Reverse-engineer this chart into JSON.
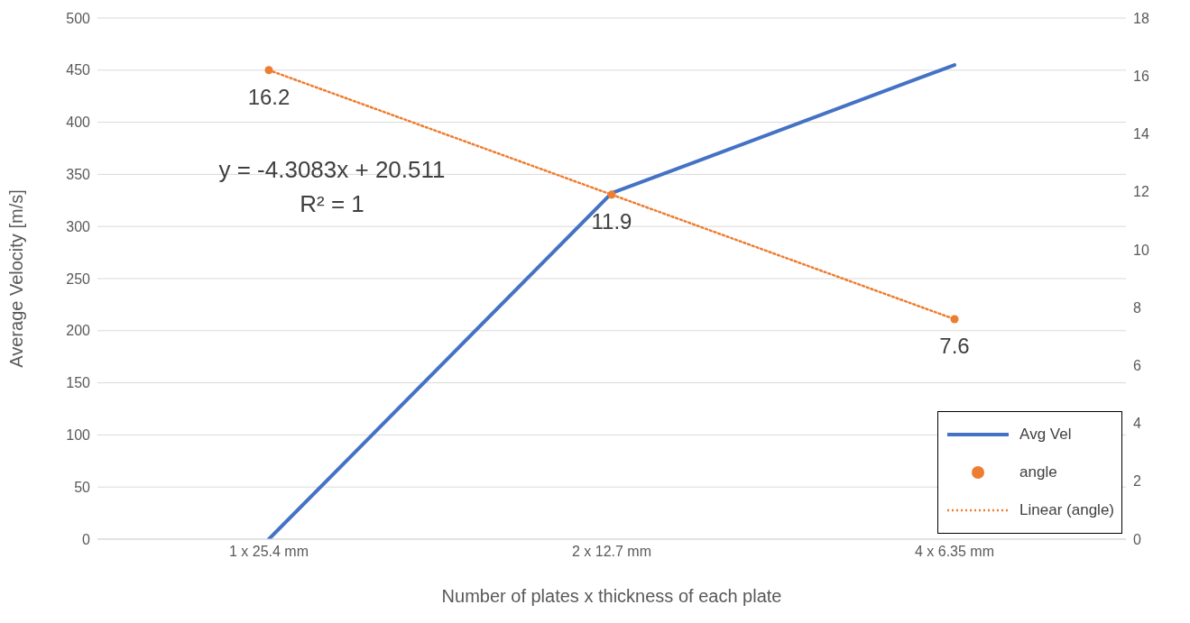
{
  "chart_data": {
    "type": "line",
    "xlabel": "Number of plates x thickness of each plate",
    "ylabel": "Average Velocity [m/s]",
    "categories": [
      "1 x 25.4 mm",
      "2 x 12.7 mm",
      "4 x 6.35 mm"
    ],
    "series": [
      {
        "name": "Avg Vel",
        "type": "line",
        "color": "#4472c4",
        "values": [
          0,
          332,
          455
        ],
        "marker": "none",
        "line_style": "solid"
      },
      {
        "name": "angle",
        "type": "scatter",
        "axis": "y2",
        "color": "#ed7d31",
        "values": [
          16.2,
          11.9,
          7.6
        ],
        "marker": "circle",
        "value_labels": [
          "16.2",
          "11.9",
          "7.6"
        ]
      },
      {
        "name": "Linear (angle)",
        "type": "line",
        "axis": "y2",
        "color": "#ed7d31",
        "values": [
          16.2,
          11.9,
          7.6
        ],
        "marker": "none",
        "line_style": "dotted"
      }
    ],
    "ylim": [
      0,
      500
    ],
    "yticks": [
      0,
      50,
      100,
      150,
      200,
      250,
      300,
      350,
      400,
      450,
      500
    ],
    "y2lim": [
      0,
      18
    ],
    "y2ticks": [
      0,
      2,
      4,
      6,
      8,
      10,
      12,
      14,
      16,
      18
    ],
    "grid": "y",
    "legend": "bottom right",
    "annotations": [
      "y = -4.3083x + 20.511",
      "R² = 1"
    ]
  }
}
